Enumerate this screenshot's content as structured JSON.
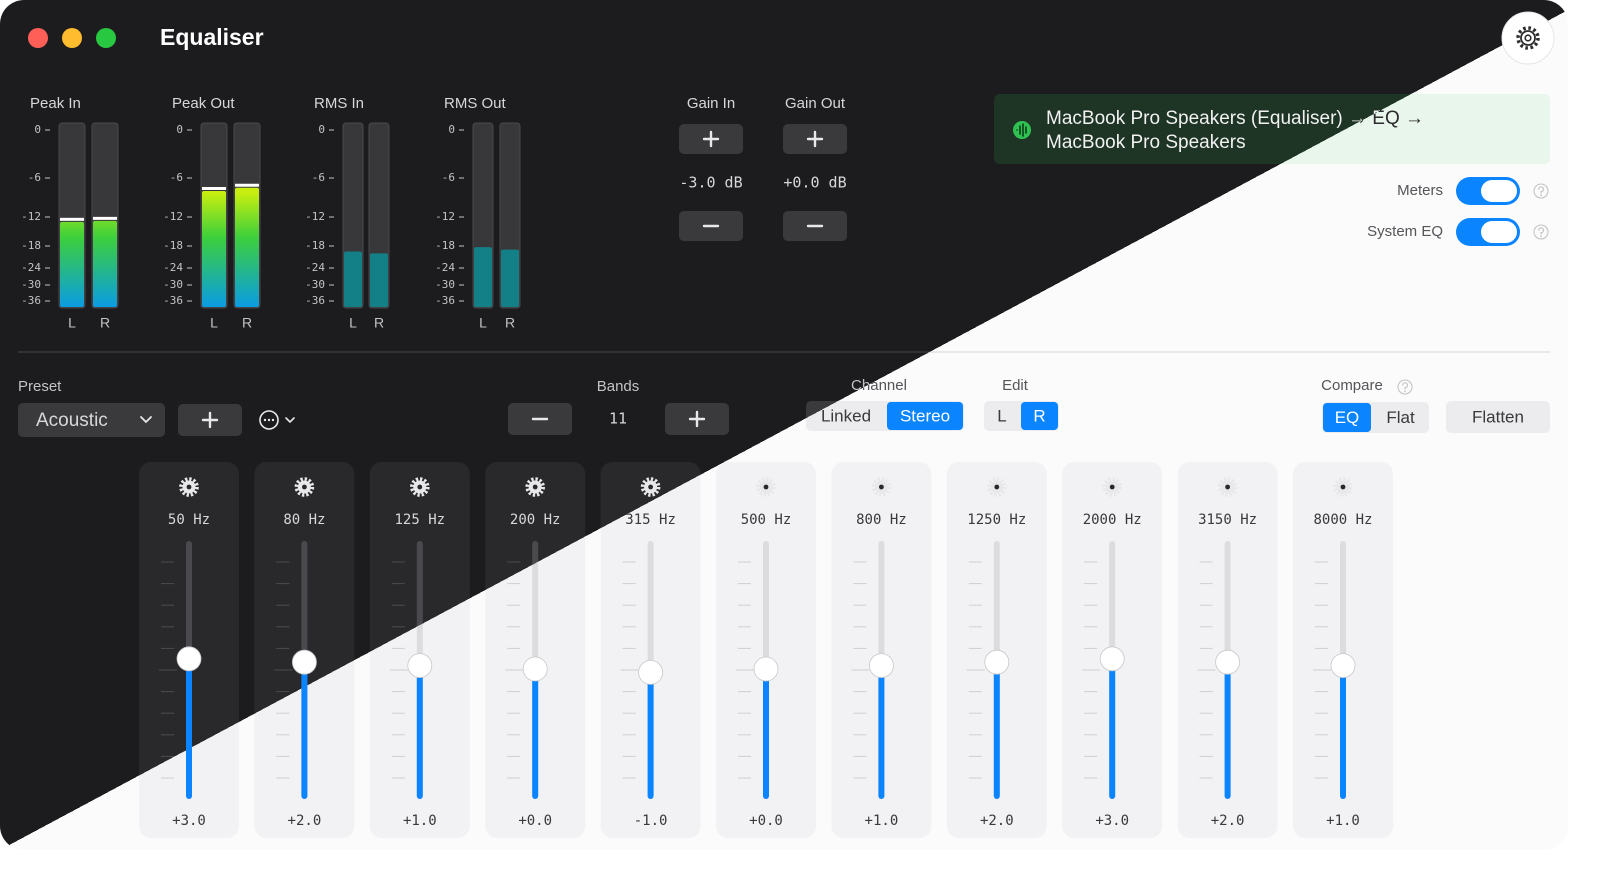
{
  "window": {
    "title": "Equaliser"
  },
  "meters": {
    "scale": [
      "0",
      "-6",
      "-12",
      "-18",
      "-24",
      "-30",
      "-36"
    ],
    "groups": [
      {
        "label": "Peak In",
        "channels": [
          {
            "name": "L",
            "level": -13
          },
          {
            "name": "R",
            "level": -12.8
          }
        ]
      },
      {
        "label": "Peak Out",
        "channels": [
          {
            "name": "L",
            "level": -8
          },
          {
            "name": "R",
            "level": -7.5
          }
        ]
      },
      {
        "label": "RMS In",
        "channels": [
          {
            "name": "L",
            "level": -19.5
          },
          {
            "name": "R",
            "level": -20
          }
        ]
      },
      {
        "label": "RMS Out",
        "channels": [
          {
            "name": "L",
            "level": -18.3
          },
          {
            "name": "R",
            "level": -19
          }
        ]
      }
    ]
  },
  "gain": [
    {
      "label": "Gain In",
      "value": "-3.0 dB"
    },
    {
      "label": "Gain Out",
      "value": "+0.0 dB"
    }
  ],
  "routing": {
    "lines": [
      "MacBook Pro Speakers (Equaliser) → EQ →",
      "MacBook Pro Speakers"
    ]
  },
  "toggles": [
    {
      "label": "Meters",
      "on": true
    },
    {
      "label": "System EQ",
      "on": true
    }
  ],
  "preset": {
    "label": "Preset",
    "value": "Acoustic"
  },
  "bands_count": {
    "label": "Bands",
    "value": "11"
  },
  "channel": {
    "label": "Channel",
    "options": [
      "Linked",
      "Stereo"
    ],
    "selected": 1
  },
  "edit": {
    "label": "Edit",
    "options": [
      "L",
      "R"
    ],
    "selected": 1
  },
  "compare": {
    "label": "Compare",
    "options": [
      "EQ",
      "Flat"
    ],
    "selected": 0
  },
  "flatten": "Flatten",
  "bands": [
    {
      "freq": "50 Hz",
      "gain": "+3.0"
    },
    {
      "freq": "80 Hz",
      "gain": "+2.0"
    },
    {
      "freq": "125 Hz",
      "gain": "+1.0"
    },
    {
      "freq": "200 Hz",
      "gain": "+0.0"
    },
    {
      "freq": "315 Hz",
      "gain": "-1.0"
    },
    {
      "freq": "500 Hz",
      "gain": "+0.0"
    },
    {
      "freq": "800 Hz",
      "gain": "+1.0"
    },
    {
      "freq": "1250 Hz",
      "gain": "+2.0"
    },
    {
      "freq": "2000 Hz",
      "gain": "+3.0"
    },
    {
      "freq": "3150 Hz",
      "gain": "+2.0"
    },
    {
      "freq": "8000 Hz",
      "gain": "+1.0"
    }
  ]
}
